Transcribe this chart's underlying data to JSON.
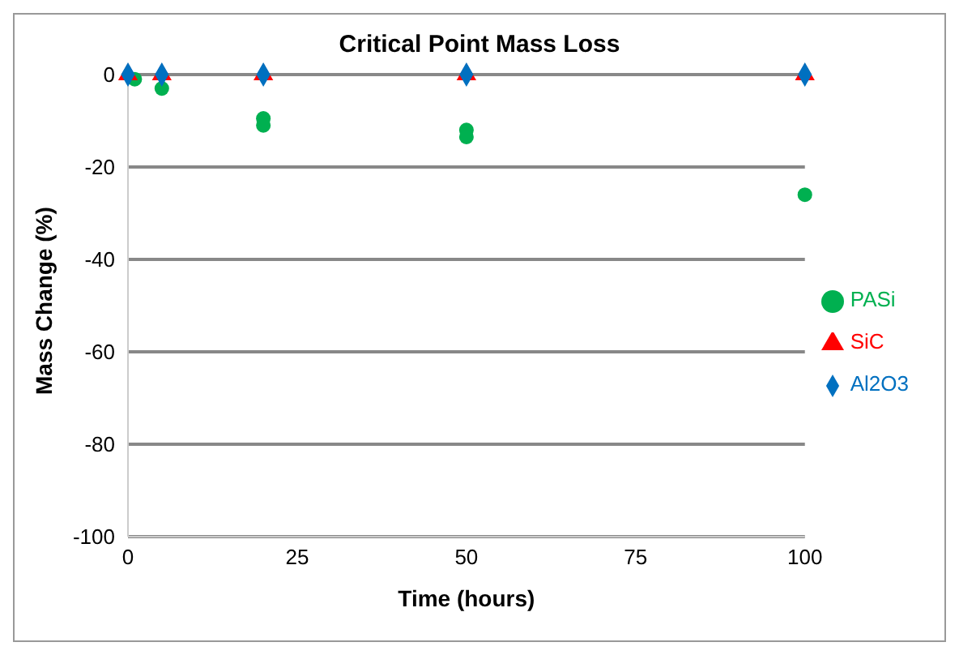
{
  "chart_data": {
    "type": "scatter",
    "title": "Critical Point Mass Loss",
    "xlabel": "Time (hours)",
    "ylabel": "Mass Change (%)",
    "xlim": [
      0,
      100
    ],
    "xticks": [
      0,
      25,
      50,
      75,
      100
    ],
    "ylim": [
      -100,
      0
    ],
    "yticks": [
      -100,
      -80,
      -60,
      -40,
      -20,
      0
    ],
    "grid": "y",
    "legend": "right",
    "series": [
      {
        "name": "Al2O3",
        "color": "#0070c0",
        "marker": "diamond",
        "x": [
          0,
          5,
          20,
          50,
          100
        ],
        "values": [
          0,
          0,
          0,
          0,
          0
        ]
      },
      {
        "name": "SiC",
        "color": "#ff0000",
        "marker": "triangle",
        "x": [
          0,
          5,
          20,
          50,
          100
        ],
        "values": [
          0,
          0,
          0,
          0,
          0
        ]
      },
      {
        "name": "PASi",
        "color": "#00b050",
        "marker": "circle",
        "x": [
          1,
          5,
          20,
          20,
          50,
          50,
          100
        ],
        "values": [
          -1,
          -3,
          -9.5,
          -11,
          -12,
          -13.5,
          -26
        ]
      }
    ]
  }
}
